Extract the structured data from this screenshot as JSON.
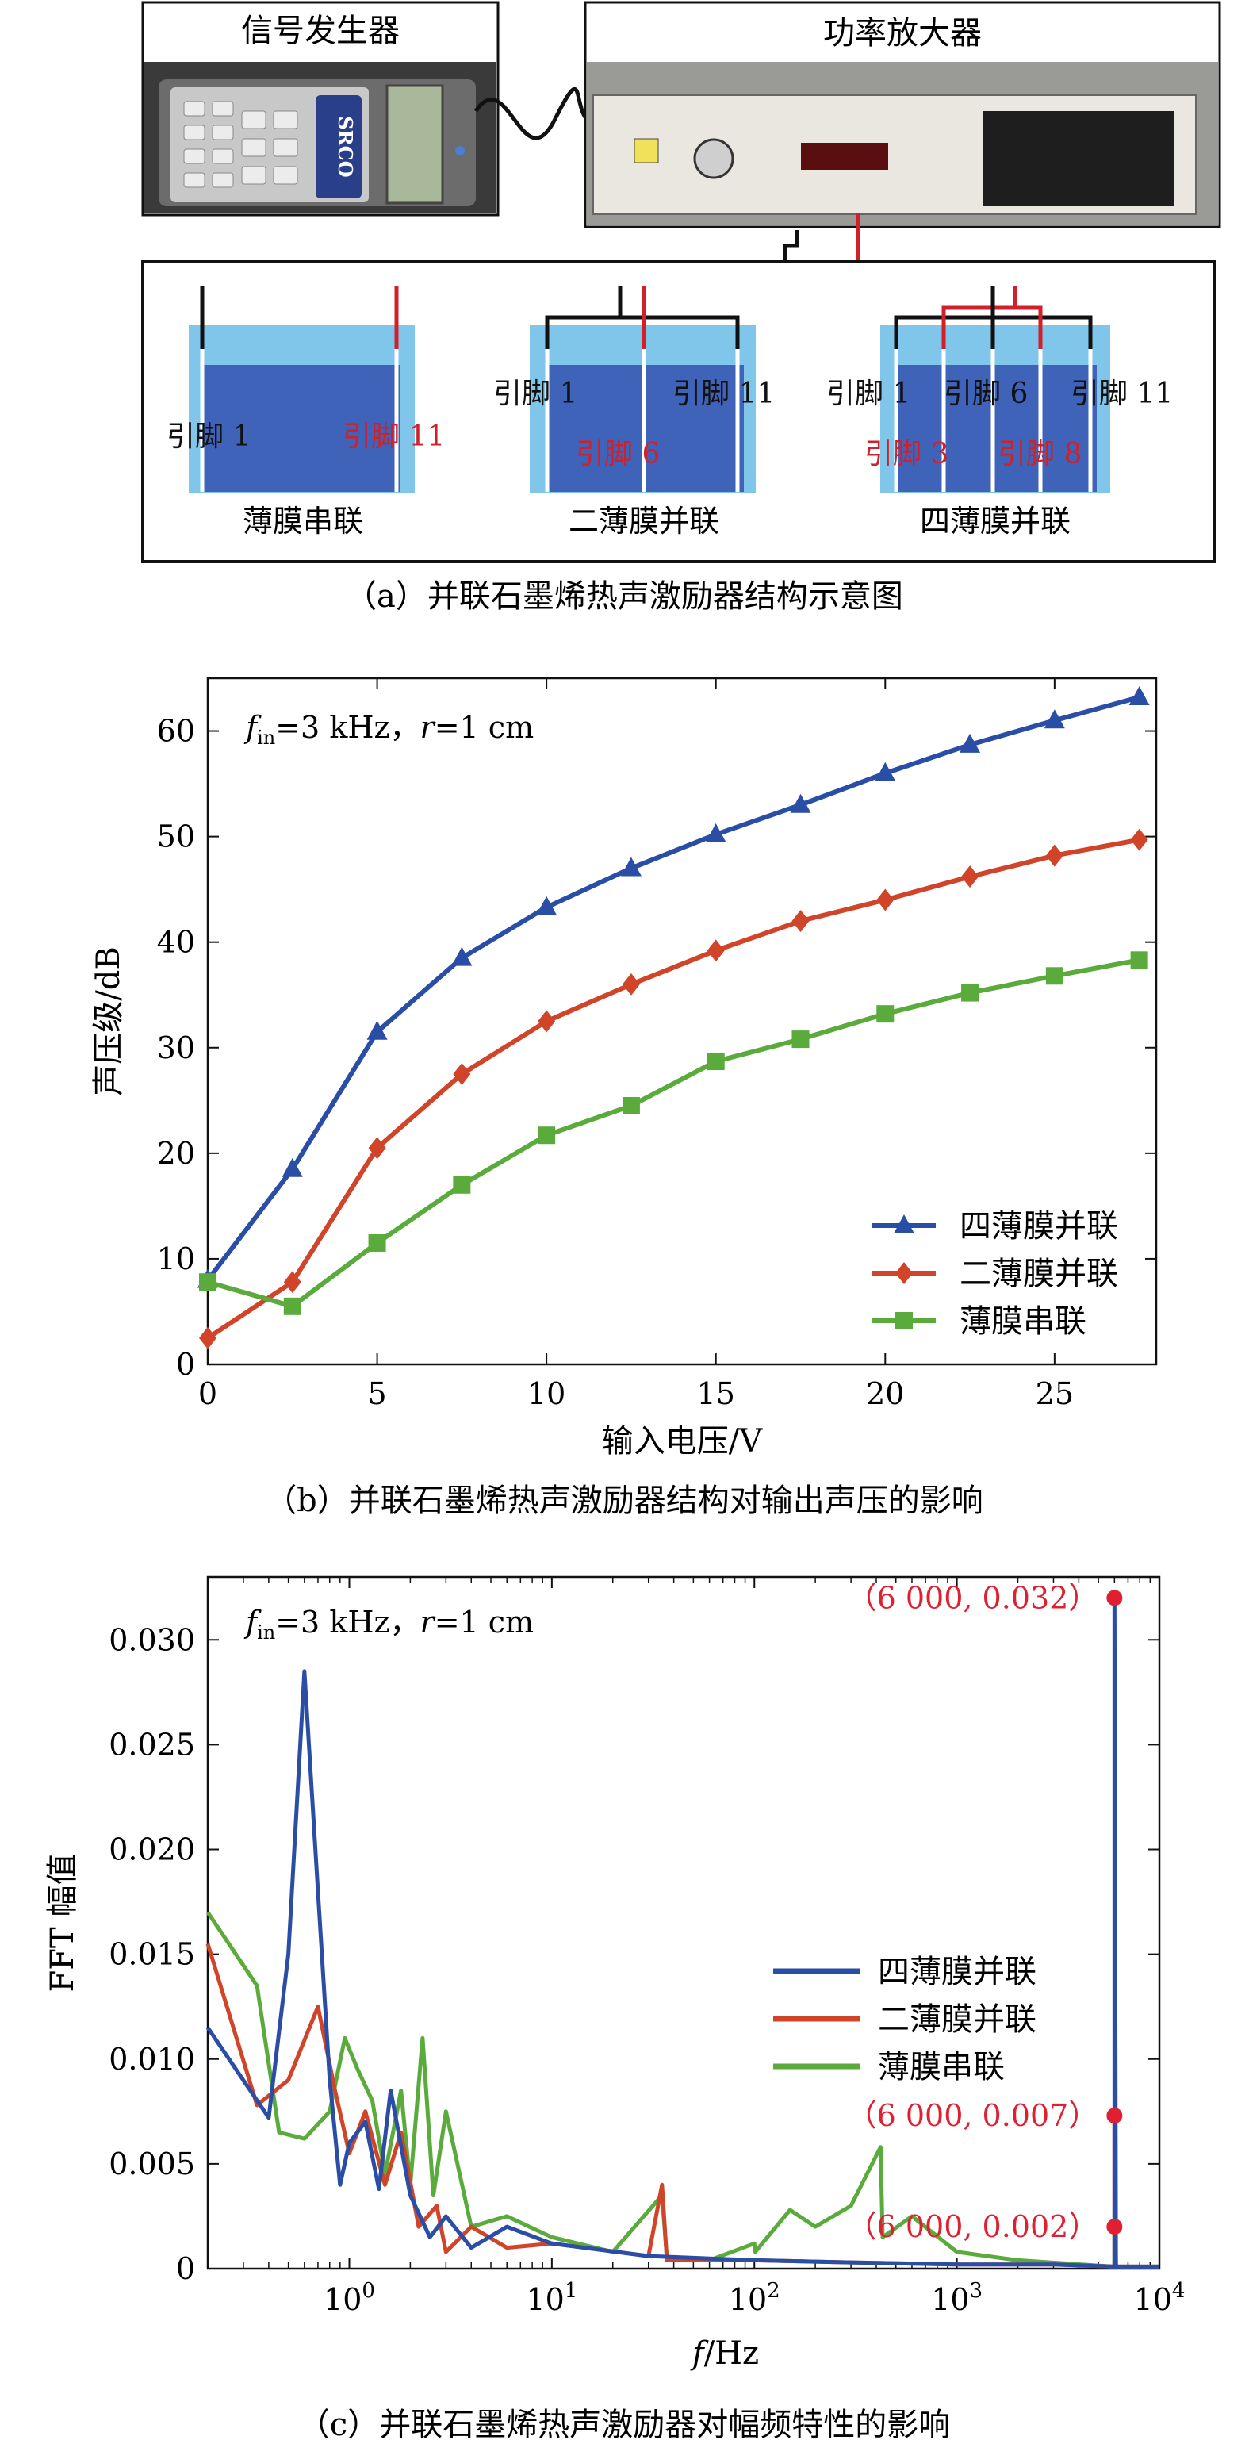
{
  "panel_a": {
    "signal_generator_label": "信号发生器",
    "power_amplifier_label": "功率放大器",
    "device_brand": "SRCO",
    "films": [
      {
        "name": "薄膜串联",
        "pins_black": [
          "引脚 1"
        ],
        "pins_red": [
          "引脚 11"
        ]
      },
      {
        "name": "二薄膜并联",
        "pins_black": [
          "引脚 1",
          "引脚 11"
        ],
        "pins_red": [
          "引脚 6"
        ]
      },
      {
        "name": "四薄膜并联",
        "pins_black": [
          "引脚 1",
          "引脚 6",
          "引脚 11"
        ],
        "pins_red": [
          "引脚 3",
          "引脚 8"
        ]
      }
    ],
    "caption": "（a）并联石墨烯热声激励器结构示意图"
  },
  "chart_data": [
    {
      "type": "line",
      "title": "",
      "annotation": "f_in=3 kHz，r=1 cm",
      "xlabel": "输入电压/V",
      "ylabel": "声压级/dB",
      "xlim": [
        0,
        28
      ],
      "ylim": [
        0,
        65
      ],
      "xticks": [
        0,
        5,
        10,
        15,
        20,
        25
      ],
      "yticks": [
        0,
        10,
        20,
        30,
        40,
        50,
        60
      ],
      "x": [
        0,
        2.5,
        5,
        7.5,
        10,
        12.5,
        15,
        17.5,
        20,
        22.5,
        25,
        27.5
      ],
      "series": [
        {
          "name": "四薄膜并联",
          "color": "#2a4ea6",
          "marker": "triangle",
          "values": [
            8,
            18.5,
            31.5,
            38.5,
            43.3,
            47,
            50.2,
            53,
            56,
            58.7,
            61,
            63.2
          ]
        },
        {
          "name": "二薄膜并联",
          "color": "#d0452a",
          "marker": "diamond",
          "values": [
            2.5,
            7.8,
            20.5,
            27.5,
            32.5,
            36,
            39.2,
            42,
            44,
            46.2,
            48.2,
            49.7
          ]
        },
        {
          "name": "薄膜串联",
          "color": "#5aab3c",
          "marker": "square",
          "values": [
            7.8,
            5.5,
            11.5,
            17,
            21.7,
            24.5,
            28.7,
            30.8,
            33.2,
            35.2,
            36.8,
            38.3
          ]
        }
      ],
      "legend_position": "bottom-right",
      "caption": "（b）并联石墨烯热声激励器结构对输出声压的影响"
    },
    {
      "type": "line",
      "x_scale": "log",
      "annotation": "f_in=3 kHz，r=1 cm",
      "xlabel": "f/Hz",
      "ylabel": "FFT 幅值",
      "xlim": [
        0.2,
        10000
      ],
      "ylim": [
        0,
        0.033
      ],
      "xticks": [
        "10^0",
        "10^1",
        "10^2",
        "10^3",
        "10^4"
      ],
      "yticks": [
        "0",
        "0.005",
        "0.010",
        "0.015",
        "0.020",
        "0.025",
        "0.030"
      ],
      "peak_annotations": [
        {
          "label": "（6 000, 0.032）",
          "x": 6000,
          "y": 0.032
        },
        {
          "label": "（6 000, 0.007）",
          "x": 6000,
          "y": 0.0073
        },
        {
          "label": "（6 000, 0.002）",
          "x": 6000,
          "y": 0.002
        }
      ],
      "series": [
        {
          "name": "四薄膜并联",
          "color": "#2a4ea6",
          "x": [
            0.2,
            0.4,
            0.5,
            0.6,
            0.7,
            0.8,
            0.9,
            1.0,
            1.2,
            1.4,
            1.6,
            2.0,
            2.5,
            3,
            4,
            6,
            10,
            30,
            100,
            300,
            1000,
            3000,
            5900,
            6000,
            6000,
            6100,
            10000
          ],
          "values": [
            0.0115,
            0.0072,
            0.015,
            0.0285,
            0.018,
            0.009,
            0.004,
            0.006,
            0.007,
            0.0038,
            0.0085,
            0.0035,
            0.0015,
            0.0025,
            0.001,
            0.002,
            0.0012,
            0.0006,
            0.0004,
            0.0003,
            0.0002,
            0.0002,
            0.0001,
            0.0001,
            0.032,
            0.0001,
            0.0001
          ]
        },
        {
          "name": "二薄膜并联",
          "color": "#d0452a",
          "x": [
            0.2,
            0.35,
            0.5,
            0.7,
            0.85,
            1.0,
            1.2,
            1.5,
            1.8,
            2.2,
            2.7,
            3,
            4,
            6,
            10,
            30,
            35,
            37,
            100,
            300,
            1000,
            3000,
            5900,
            6000,
            6000,
            6100,
            10000
          ],
          "values": [
            0.0155,
            0.0078,
            0.009,
            0.0125,
            0.0085,
            0.0055,
            0.0075,
            0.004,
            0.0065,
            0.002,
            0.003,
            0.0008,
            0.002,
            0.001,
            0.0012,
            0.0006,
            0.004,
            0.0004,
            0.0004,
            0.0003,
            0.0002,
            0.0002,
            0.0001,
            0.0001,
            0.0073,
            0.0001,
            0.0001
          ]
        },
        {
          "name": "薄膜串联",
          "color": "#5aab3c",
          "x": [
            0.2,
            0.35,
            0.45,
            0.6,
            0.8,
            0.95,
            1.1,
            1.3,
            1.5,
            1.8,
            2.0,
            2.3,
            2.6,
            3,
            4,
            6,
            10,
            20,
            35,
            37,
            60,
            100,
            101,
            150,
            200,
            300,
            420,
            430,
            600,
            1000,
            2000,
            5900,
            6000,
            6000,
            6100,
            10000
          ],
          "values": [
            0.017,
            0.0135,
            0.0065,
            0.0062,
            0.0075,
            0.011,
            0.0095,
            0.008,
            0.0045,
            0.0085,
            0.004,
            0.011,
            0.0035,
            0.0075,
            0.002,
            0.0025,
            0.0015,
            0.0008,
            0.0035,
            0.0005,
            0.0004,
            0.0012,
            0.0008,
            0.0028,
            0.002,
            0.003,
            0.0058,
            0.0015,
            0.0025,
            0.0008,
            0.0004,
            0.0001,
            0.0001,
            0.002,
            0.0001,
            0.0001
          ]
        }
      ],
      "legend_position": "right-middle",
      "caption": "（c）并联石墨烯热声激励器对幅频特性的影响"
    }
  ]
}
